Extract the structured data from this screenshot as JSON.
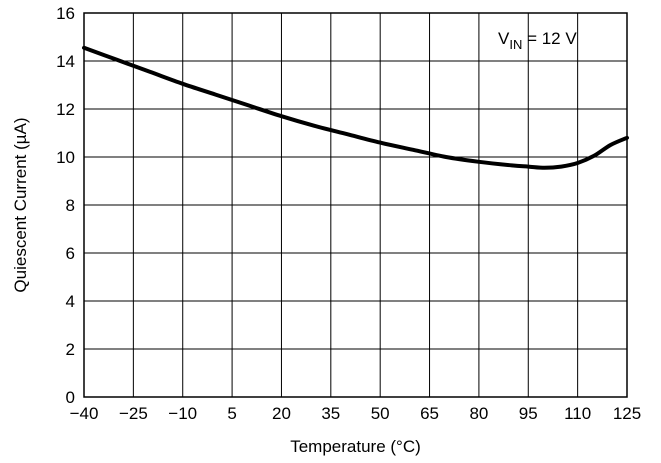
{
  "chart_data": {
    "type": "line",
    "title": "",
    "xlabel": "Temperature (°C)",
    "ylabel": "Quiescent Current (µA)",
    "xlim": [
      -40,
      125
    ],
    "ylim": [
      0,
      16
    ],
    "grid": true,
    "x_ticks": [
      -40,
      -25,
      -10,
      5,
      20,
      35,
      50,
      65,
      80,
      95,
      110,
      125
    ],
    "x_tick_labels": [
      "−40",
      "−25",
      "−10",
      "5",
      "20",
      "35",
      "50",
      "65",
      "80",
      "95",
      "110",
      "125"
    ],
    "y_ticks": [
      0,
      2,
      4,
      6,
      8,
      10,
      12,
      14,
      16
    ],
    "y_tick_labels": [
      "0",
      "2",
      "4",
      "6",
      "8",
      "10",
      "12",
      "14",
      "16"
    ],
    "annotation": {
      "main": "V",
      "subscript": "IN",
      "rest": " = 12 V"
    },
    "series": [
      {
        "x": [
          -40,
          -30,
          -20,
          -10,
          0,
          10,
          20,
          30,
          40,
          50,
          60,
          70,
          80,
          90,
          95,
          100,
          105,
          110,
          115,
          120,
          125
        ],
        "y": [
          14.55,
          14.05,
          13.55,
          13.05,
          12.6,
          12.15,
          11.7,
          11.3,
          10.95,
          10.6,
          10.3,
          10.0,
          9.8,
          9.65,
          9.6,
          9.55,
          9.6,
          9.75,
          10.05,
          10.5,
          10.8
        ]
      }
    ]
  }
}
